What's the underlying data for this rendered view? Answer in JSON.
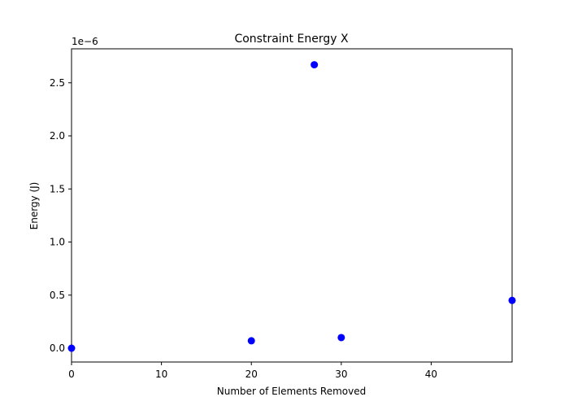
{
  "chart_data": {
    "type": "scatter",
    "title": "Constraint Energy X",
    "xlabel": "Number of Elements Removed",
    "ylabel": "Energy (J)",
    "y_offset_label": "1e−6",
    "xlim": [
      0,
      49
    ],
    "ylim": [
      -1.3e-07,
      2.82e-06
    ],
    "x_ticks": [
      0,
      10,
      20,
      30,
      40
    ],
    "x_tick_labels": [
      "0",
      "10",
      "20",
      "30",
      "40"
    ],
    "y_ticks": [
      0.0,
      5e-07,
      1e-06,
      1.5e-06,
      2e-06,
      2.5e-06
    ],
    "y_tick_labels": [
      "0.0",
      "0.5",
      "1.0",
      "1.5",
      "2.0",
      "2.5"
    ],
    "grid": false,
    "marker_color": "#0000ff",
    "series": [
      {
        "x": [
          0,
          20,
          27,
          30,
          49
        ],
        "y": [
          0.0,
          7e-08,
          2.67e-06,
          1e-07,
          4.5e-07
        ]
      }
    ]
  }
}
